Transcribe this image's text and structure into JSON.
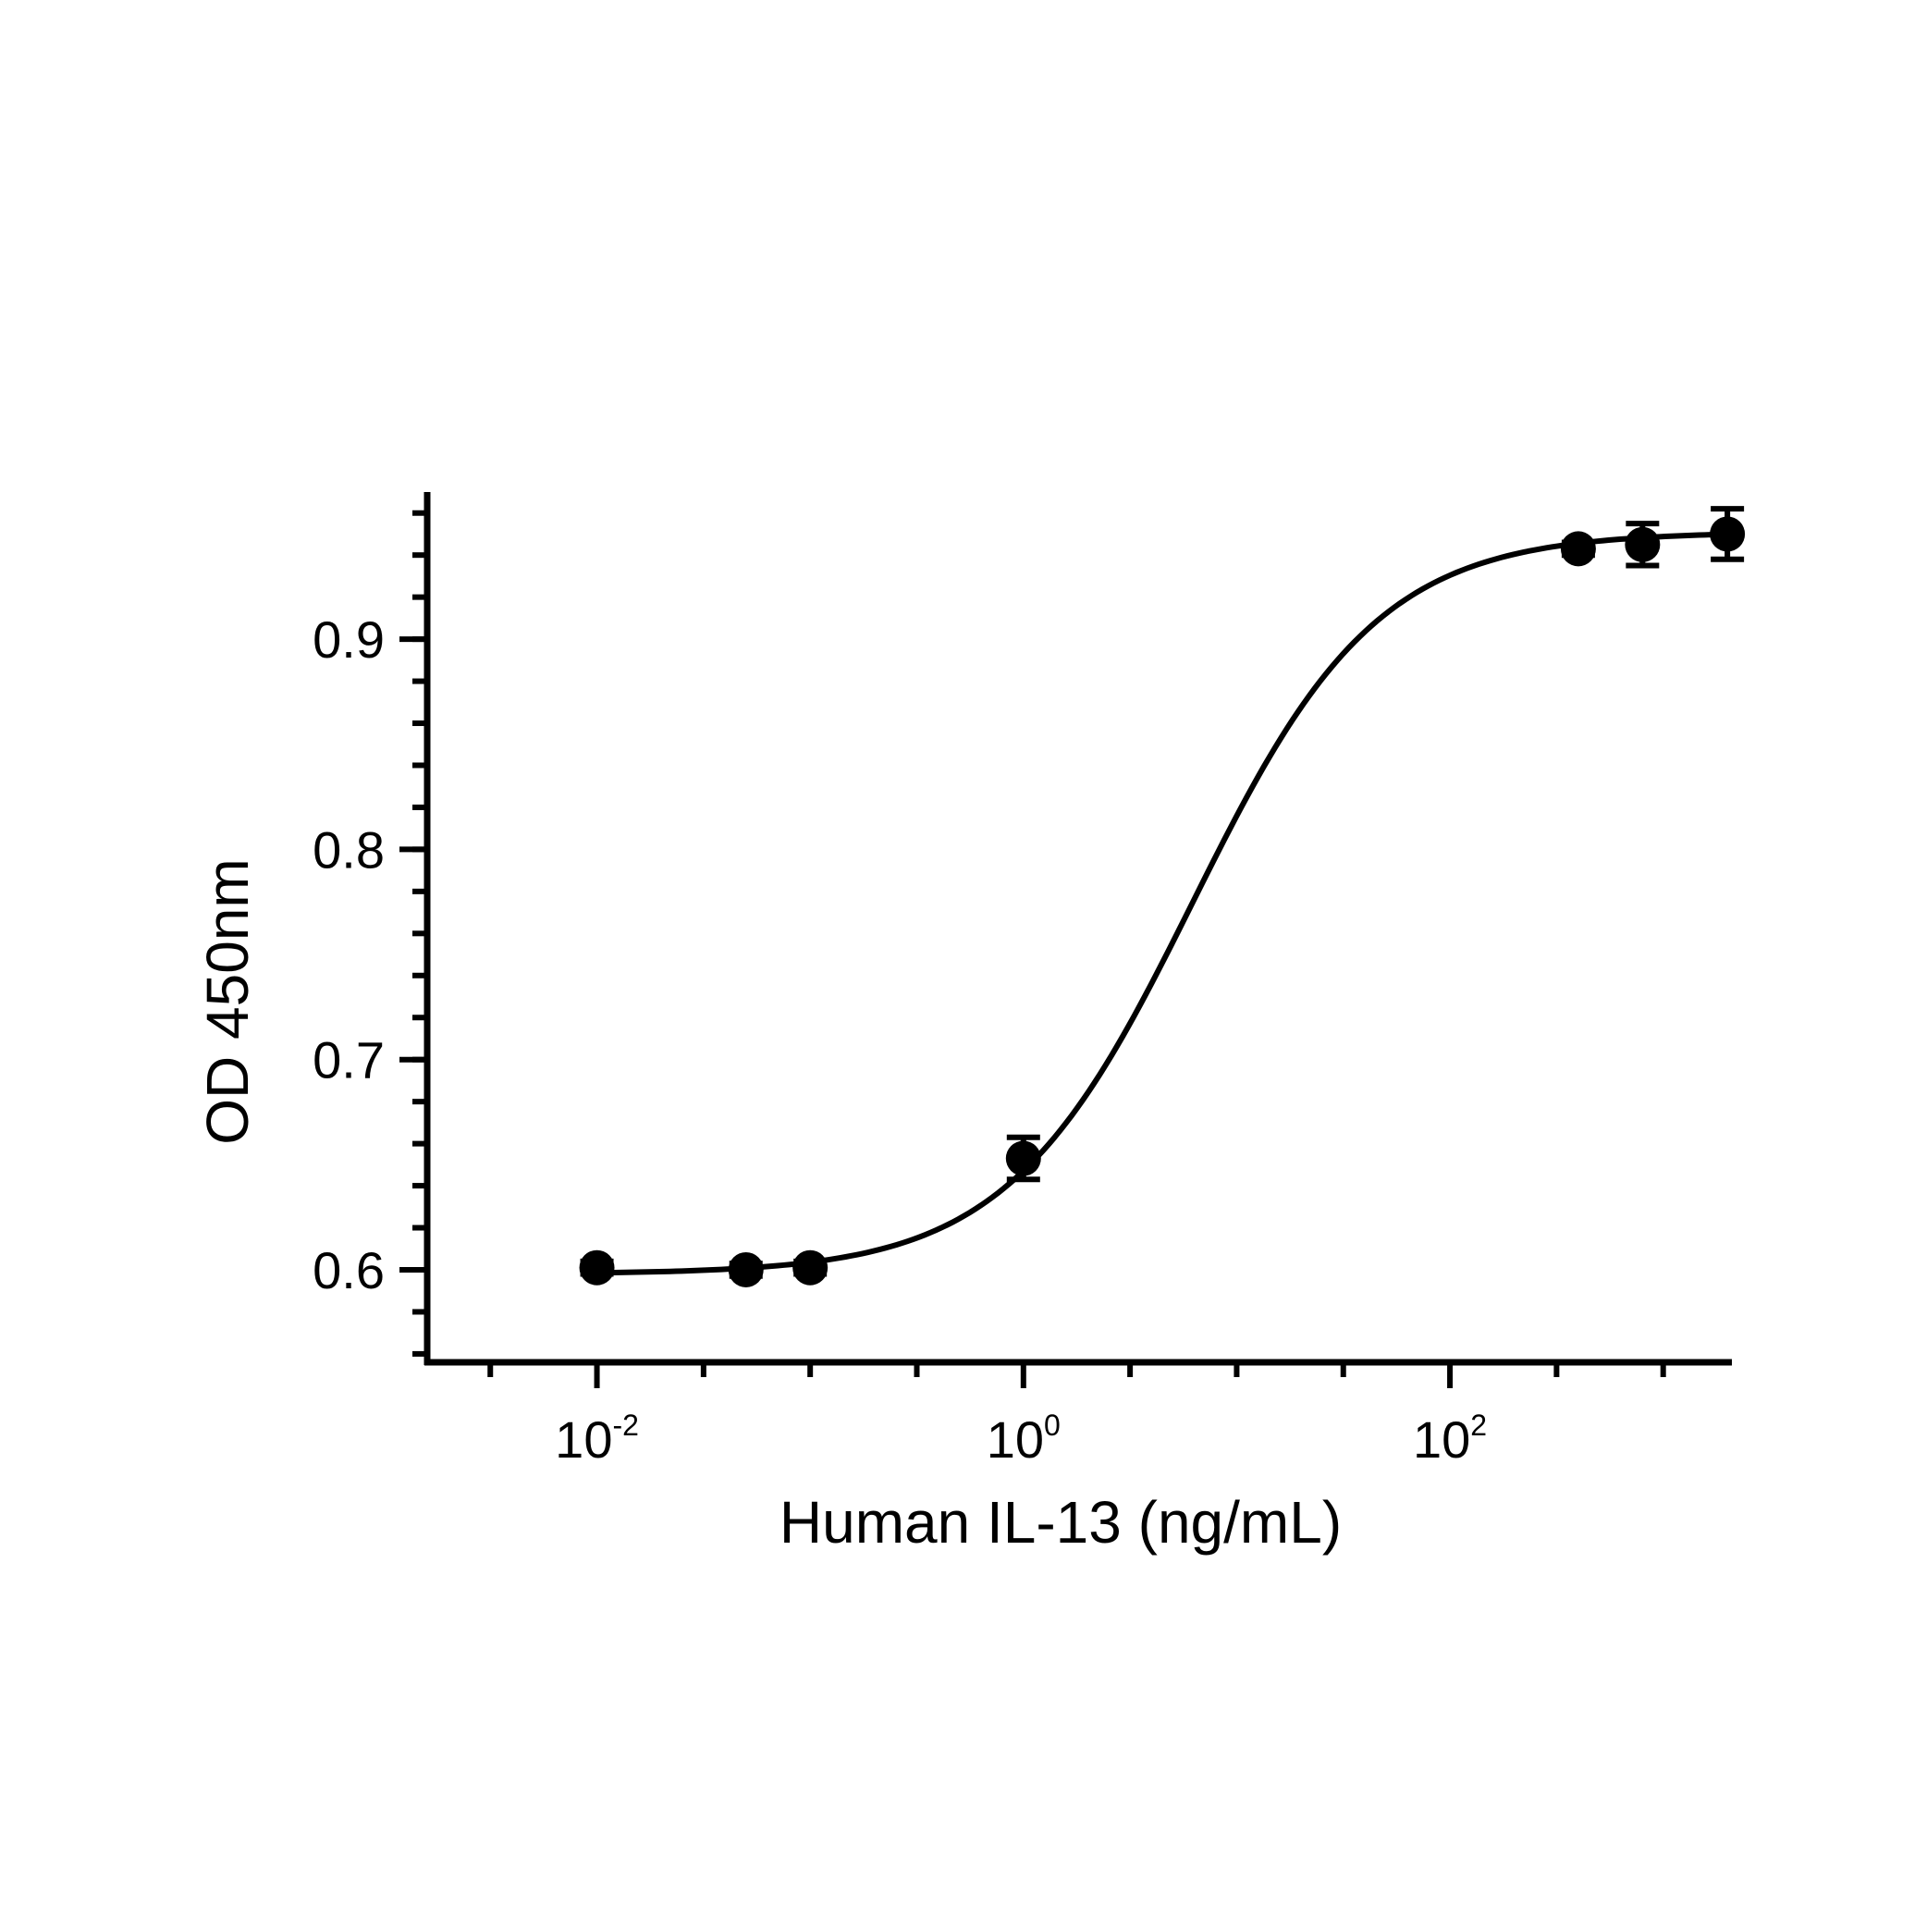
{
  "chart_data": {
    "type": "scatter",
    "title": "",
    "xlabel": "Human IL-13 (ng/mL)",
    "ylabel": "OD 450nm",
    "x_scale": "log10",
    "xlim": [
      0.0016,
      2100
    ],
    "ylim": [
      0.556,
      0.97
    ],
    "grid": false,
    "legend": "none",
    "x_ticks": [
      {
        "value": 0.01,
        "base": "10",
        "exp": "-2"
      },
      {
        "value": 1,
        "base": "10",
        "exp": "0"
      },
      {
        "value": 100,
        "base": "10",
        "exp": "2"
      }
    ],
    "y_ticks": [
      {
        "value": 0.6,
        "label": "0.6"
      },
      {
        "value": 0.7,
        "label": "0.7"
      },
      {
        "value": 0.8,
        "label": "0.8"
      },
      {
        "value": 0.9,
        "label": "0.9"
      }
    ],
    "series": [
      {
        "points": [
          {
            "x": 0.01,
            "y": 0.601,
            "err": 0.003
          },
          {
            "x": 0.05,
            "y": 0.6,
            "err": 0.003
          },
          {
            "x": 0.1,
            "y": 0.601,
            "err": 0.003
          },
          {
            "x": 1,
            "y": 0.653,
            "err": 0.01
          },
          {
            "x": 400,
            "y": 0.943,
            "err": 0.003
          },
          {
            "x": 800,
            "y": 0.945,
            "err": 0.01
          },
          {
            "x": 2000,
            "y": 0.95,
            "err": 0.012
          }
        ],
        "fit": {
          "model": "4PL",
          "bottom": 0.598,
          "top": 0.951,
          "ec50": 6.2,
          "hill": 1.0
        }
      }
    ],
    "colors": {
      "marker": "#000000",
      "line": "#000000",
      "axis": "#000000"
    }
  }
}
